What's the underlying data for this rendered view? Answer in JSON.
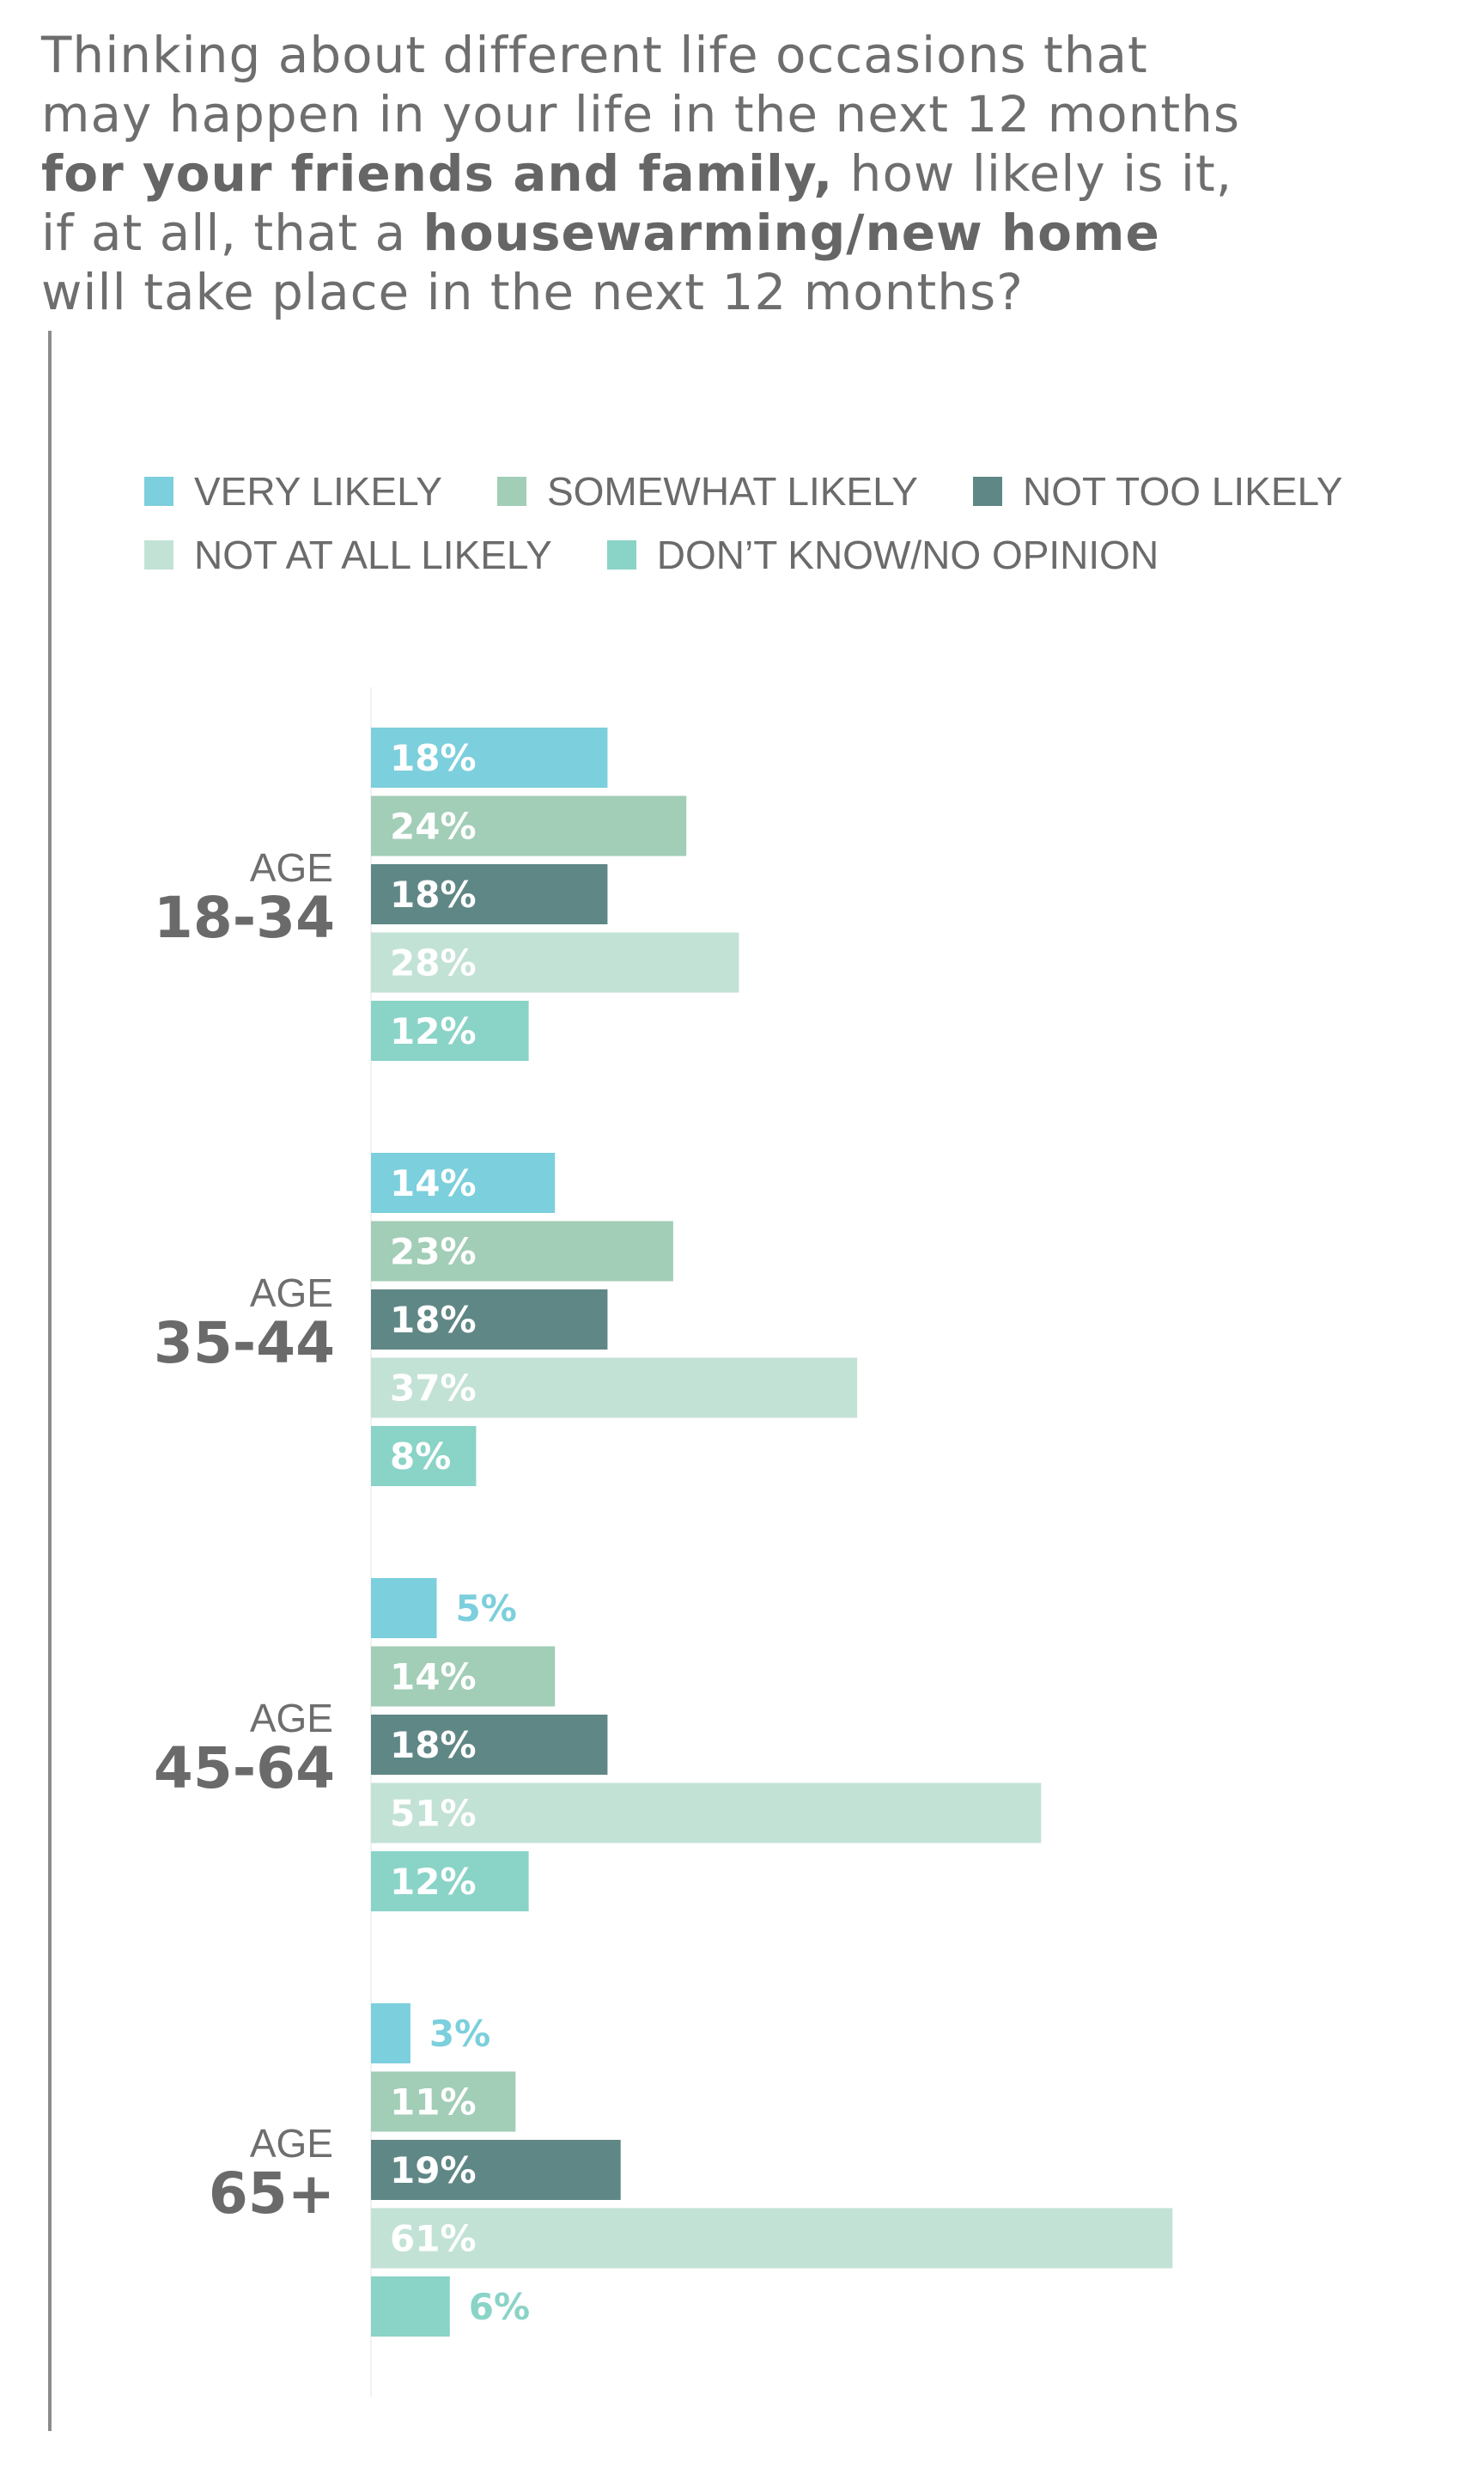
{
  "question": {
    "line1": "Thinking about different life occasions that",
    "line2": "may happen in your life in the next 12 months",
    "line3_bold": "for your friends and family,",
    "line3_rest": " how likely is it,",
    "line4_pre": "if at all, that a ",
    "line4_bold": "housewarming/new home",
    "line5": "will take place in the next 12 months?"
  },
  "chart_data": {
    "type": "bar",
    "orientation": "horizontal",
    "value_unit": "%",
    "legend_placement": "top",
    "grid": false,
    "colors": {
      "very_likely": "#7ccfdc",
      "somewhat_likely": "#a2cdb7",
      "not_too_likely": "#5f8785",
      "not_at_all_likely": "#c3e2d6",
      "dont_know": "#8ad3c7"
    },
    "series": [
      {
        "name": "VERY LIKELY",
        "key": "very_likely"
      },
      {
        "name": "SOMEWHAT LIKELY",
        "key": "somewhat_likely"
      },
      {
        "name": "NOT TOO LIKELY",
        "key": "not_too_likely"
      },
      {
        "name": "NOT AT ALL LIKELY",
        "key": "not_at_all_likely"
      },
      {
        "name": "DON’T KNOW/NO OPINION",
        "key": "dont_know"
      }
    ],
    "groups": [
      {
        "label_top": "AGE",
        "label_bottom": "18-34",
        "values": [
          18,
          24,
          18,
          28,
          12
        ]
      },
      {
        "label_top": "AGE",
        "label_bottom": "35-44",
        "values": [
          14,
          23,
          18,
          37,
          8
        ]
      },
      {
        "label_top": "AGE",
        "label_bottom": "45-64",
        "values": [
          5,
          14,
          18,
          51,
          12
        ]
      },
      {
        "label_top": "AGE",
        "label_bottom": "65+",
        "values": [
          3,
          11,
          19,
          61,
          6
        ]
      }
    ]
  }
}
